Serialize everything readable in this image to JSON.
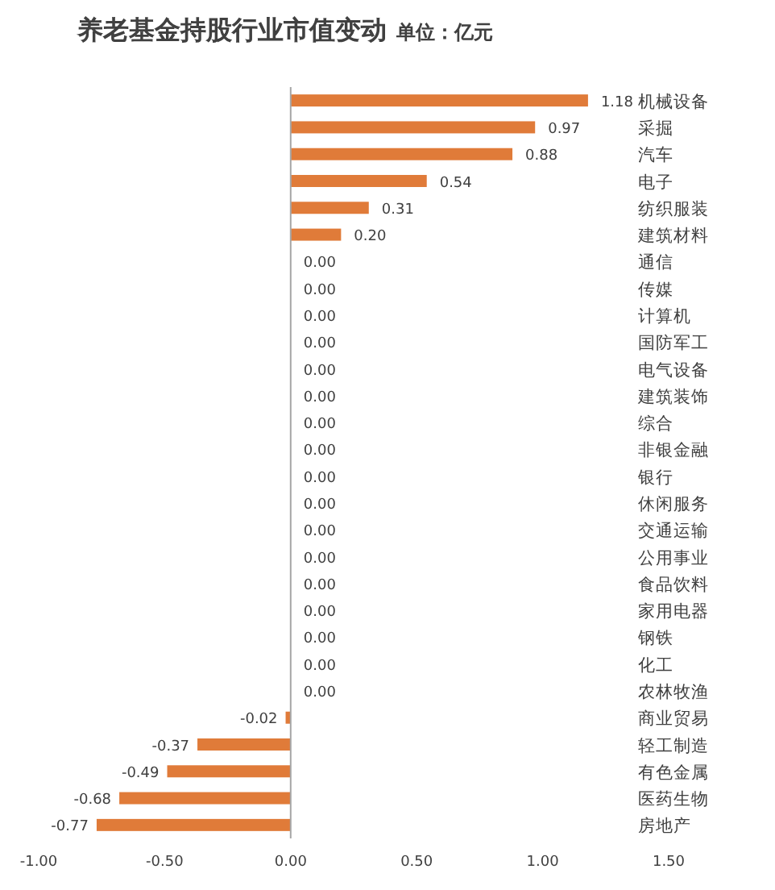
{
  "chart_data": {
    "type": "bar",
    "orientation": "horizontal",
    "title": "养老基金持股行业市值变动",
    "subtitle": "单位：亿元",
    "categories": [
      "机械设备",
      "采掘",
      "汽车",
      "电子",
      "纺织服装",
      "建筑材料",
      "通信",
      "传媒",
      "计算机",
      "国防军工",
      "电气设备",
      "建筑装饰",
      "综合",
      "非银金融",
      "银行",
      "休闲服务",
      "交通运输",
      "公用事业",
      "食品饮料",
      "家用电器",
      "钢铁",
      "化工",
      "农林牧渔",
      "商业贸易",
      "轻工制造",
      "有色金属",
      "医药生物",
      "房地产"
    ],
    "values": [
      1.18,
      0.97,
      0.88,
      0.54,
      0.31,
      0.2,
      0,
      0,
      0,
      0,
      0,
      0,
      0,
      0,
      0,
      0,
      0,
      0,
      0,
      0,
      0,
      0,
      0,
      -0.02,
      -0.37,
      -0.49,
      -0.68,
      -0.77
    ],
    "value_labels": [
      "1.18",
      "0.97",
      "0.88",
      "0.54",
      "0.31",
      "0.20",
      "0.00",
      "0.00",
      "0.00",
      "0.00",
      "0.00",
      "0.00",
      "0.00",
      "0.00",
      "0.00",
      "0.00",
      "0.00",
      "0.00",
      "0.00",
      "0.00",
      "0.00",
      "0.00",
      "0.00",
      "-0.02",
      "-0.37",
      "-0.49",
      "-0.68",
      "-0.77"
    ],
    "color": "#e07b39",
    "xlim": [
      -1,
      1.5
    ],
    "xticks": [
      {
        "value": -1,
        "label": "-1.00"
      },
      {
        "value": -0.5,
        "label": "-0.50"
      },
      {
        "value": 0,
        "label": "0.00"
      },
      {
        "value": 0.5,
        "label": "0.50"
      },
      {
        "value": 1,
        "label": "1.00"
      },
      {
        "value": 1.5,
        "label": "1.50"
      }
    ]
  }
}
